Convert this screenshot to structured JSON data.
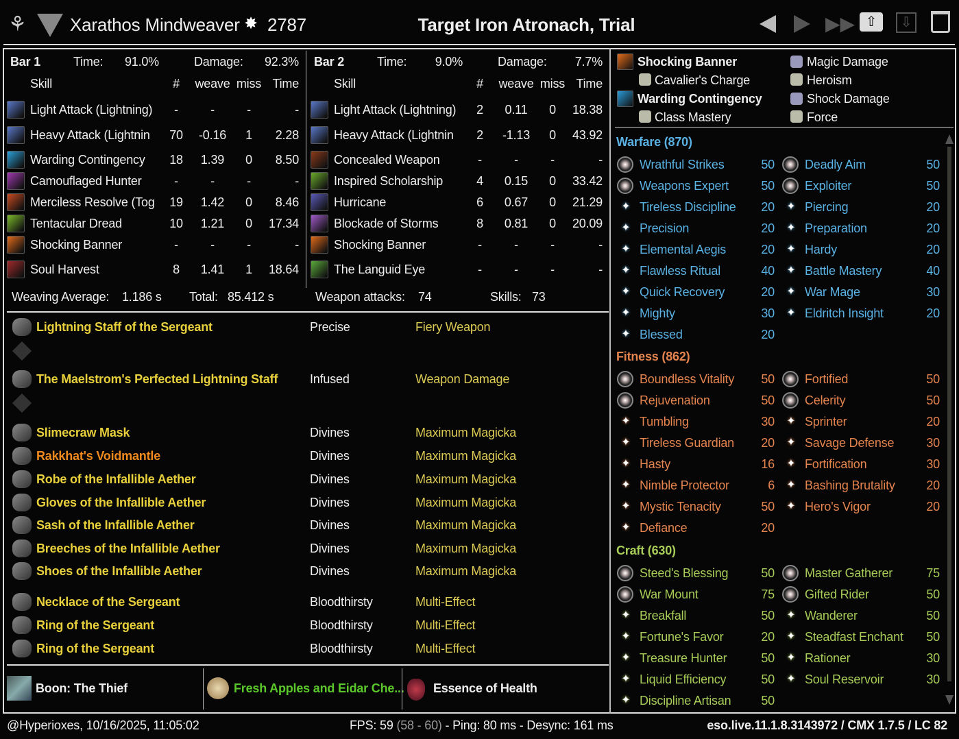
{
  "header": {
    "player_name": "Xarathos Mindweaver",
    "champion_points": "2787",
    "title": "Target Iron Atronach, Trial",
    "icons": [
      "class-emblem-icon",
      "alliance-icon",
      "champion-icon"
    ],
    "buttons": [
      "previous-icon",
      "next-icon",
      "last-icon",
      "upload-icon",
      "save-icon",
      "delete-icon"
    ]
  },
  "bars": [
    {
      "label": "Bar 1",
      "time_label": "Time:",
      "time": "91.0%",
      "damage_label": "Damage:",
      "damage": "92.3%",
      "cols": {
        "skill": "Skill",
        "count": "#",
        "weave": "weave",
        "miss": "miss",
        "time": "Time"
      },
      "rows": [
        {
          "name": "Light Attack (Lightning)",
          "count": "-",
          "weave": "-",
          "miss": "-",
          "time": "-",
          "color": "#5a78c8"
        },
        {
          "name": "Heavy Attack (Lightnin",
          "count": "70",
          "weave": "-0.16",
          "miss": "1",
          "time": "2.28",
          "color": "#5a78c8"
        },
        {
          "name": "Warding Contingency",
          "count": "18",
          "weave": "1.39",
          "miss": "0",
          "time": "8.50",
          "color": "#2aa0d8"
        },
        {
          "name": "Camouflaged Hunter",
          "count": "-",
          "weave": "-",
          "miss": "-",
          "time": "-",
          "color": "#a03ab0"
        },
        {
          "name": "Merciless Resolve (Tog",
          "count": "19",
          "weave": "1.42",
          "miss": "0",
          "time": "8.46",
          "color": "#c84a20"
        },
        {
          "name": "Tentacular Dread",
          "count": "10",
          "weave": "1.21",
          "miss": "0",
          "time": "17.34",
          "color": "#7ab82a"
        },
        {
          "name": "Shocking Banner",
          "count": "-",
          "weave": "-",
          "miss": "-",
          "time": "-",
          "color": "#e06a1a"
        },
        {
          "name": "Soul Harvest",
          "count": "8",
          "weave": "1.41",
          "miss": "1",
          "time": "18.64",
          "color": "#a02a2a"
        }
      ],
      "footer_left_label": "Weaving Average:",
      "footer_left": "1.186 s",
      "footer_right_label": "Total:",
      "footer_right": "85.412 s"
    },
    {
      "label": "Bar 2",
      "time_label": "Time:",
      "time": "9.0%",
      "damage_label": "Damage:",
      "damage": "7.7%",
      "cols": {
        "skill": "Skill",
        "count": "#",
        "weave": "weave",
        "miss": "miss",
        "time": "Time"
      },
      "rows": [
        {
          "name": "Light Attack (Lightning)",
          "count": "2",
          "weave": "0.11",
          "miss": "0",
          "time": "18.38",
          "color": "#5a78c8"
        },
        {
          "name": "Heavy Attack (Lightnin",
          "count": "2",
          "weave": "-1.13",
          "miss": "0",
          "time": "43.92",
          "color": "#5a78c8"
        },
        {
          "name": "Concealed Weapon",
          "count": "-",
          "weave": "-",
          "miss": "-",
          "time": "-",
          "color": "#8a3a1a"
        },
        {
          "name": "Inspired Scholarship",
          "count": "4",
          "weave": "0.15",
          "miss": "0",
          "time": "33.42",
          "color": "#6aa82a"
        },
        {
          "name": "Hurricane",
          "count": "6",
          "weave": "0.67",
          "miss": "0",
          "time": "21.29",
          "color": "#5a5ab8"
        },
        {
          "name": "Blockade of Storms",
          "count": "8",
          "weave": "0.81",
          "miss": "0",
          "time": "20.09",
          "color": "#a05ac8"
        },
        {
          "name": "Shocking Banner",
          "count": "-",
          "weave": "-",
          "miss": "-",
          "time": "-",
          "color": "#e06a1a"
        },
        {
          "name": "The Languid Eye",
          "count": "-",
          "weave": "-",
          "miss": "-",
          "time": "-",
          "color": "#5aa83a"
        }
      ],
      "footer_left_label": "Weapon attacks:",
      "footer_left": "74",
      "footer_right_label": "Skills:",
      "footer_right": "73"
    }
  ],
  "gear": [
    {
      "name": "Lightning Staff of the Sergeant",
      "trait": "Precise",
      "enchant": "Fiery Weapon",
      "quality_color": "#e8d03c",
      "icon": "staff-icon"
    },
    {
      "name": "The Maelstrom's Perfected Lightning Staff",
      "trait": "Infused",
      "enchant": "Weapon Damage",
      "quality_color": "#e8d03c",
      "icon": "staff-icon"
    },
    {
      "name": "Slimecraw Mask",
      "trait": "Divines",
      "enchant": "Maximum Magicka",
      "quality_color": "#e8d03c",
      "icon": "helmet-icon"
    },
    {
      "name": "Rakkhat's Voidmantle",
      "trait": "Divines",
      "enchant": "Maximum Magicka",
      "quality_color": "#f08a1e",
      "icon": "shoulders-icon"
    },
    {
      "name": "Robe of the Infallible Aether",
      "trait": "Divines",
      "enchant": "Maximum Magicka",
      "quality_color": "#e8d03c",
      "icon": "chest-icon"
    },
    {
      "name": "Gloves of the Infallible Aether",
      "trait": "Divines",
      "enchant": "Maximum Magicka",
      "quality_color": "#e8d03c",
      "icon": "gloves-icon"
    },
    {
      "name": "Sash of the Infallible Aether",
      "trait": "Divines",
      "enchant": "Maximum Magicka",
      "quality_color": "#e8d03c",
      "icon": "belt-icon"
    },
    {
      "name": "Breeches of the Infallible Aether",
      "trait": "Divines",
      "enchant": "Maximum Magicka",
      "quality_color": "#e8d03c",
      "icon": "legs-icon"
    },
    {
      "name": "Shoes of the Infallible Aether",
      "trait": "Divines",
      "enchant": "Maximum Magicka",
      "quality_color": "#e8d03c",
      "icon": "boots-icon"
    },
    {
      "name": "Necklace of the Sergeant",
      "trait": "Bloodthirsty",
      "enchant": "Multi-Effect",
      "quality_color": "#e8d03c",
      "icon": "necklace-icon"
    },
    {
      "name": "Ring of the Sergeant",
      "trait": "Bloodthirsty",
      "enchant": "Multi-Effect",
      "quality_color": "#e8d03c",
      "icon": "ring-icon"
    },
    {
      "name": "Ring of the Sergeant",
      "trait": "Bloodthirsty",
      "enchant": "Multi-Effect",
      "quality_color": "#e8d03c",
      "icon": "ring-icon"
    }
  ],
  "consumables": {
    "mundus": "Boon: The Thief",
    "food": "Fresh Apples and Eidar Che...",
    "drink": "Essence of Health",
    "food_color": "#5ac82a"
  },
  "scribed": [
    {
      "name": "Shocking Banner",
      "focus": "Cavalier's Charge",
      "signature": "Magic Damage",
      "affix": "Heroism"
    },
    {
      "name": "Warding Contingency",
      "focus": "Class Mastery",
      "signature": "Shock Damage",
      "affix": "Force"
    }
  ],
  "cp": [
    {
      "title": "Warfare (870)",
      "color": "#5ab2e4",
      "slotted": 2,
      "stars": [
        [
          "Wrathful Strikes",
          "50"
        ],
        [
          "Deadly Aim",
          "50"
        ],
        [
          "Weapons Expert",
          "50"
        ],
        [
          "Exploiter",
          "50"
        ],
        [
          "Tireless Discipline",
          "20"
        ],
        [
          "Piercing",
          "20"
        ],
        [
          "Precision",
          "20"
        ],
        [
          "Preparation",
          "20"
        ],
        [
          "Elemental Aegis",
          "20"
        ],
        [
          "Hardy",
          "20"
        ],
        [
          "Flawless Ritual",
          "40"
        ],
        [
          "Battle Mastery",
          "40"
        ],
        [
          "Quick Recovery",
          "20"
        ],
        [
          "War Mage",
          "30"
        ],
        [
          "Mighty",
          "30"
        ],
        [
          "Eldritch Insight",
          "20"
        ],
        [
          "Blessed",
          "20"
        ]
      ]
    },
    {
      "title": "Fitness (862)",
      "color": "#e4844e",
      "slotted": 2,
      "stars": [
        [
          "Boundless Vitality",
          "50"
        ],
        [
          "Fortified",
          "50"
        ],
        [
          "Rejuvenation",
          "50"
        ],
        [
          "Celerity",
          "50"
        ],
        [
          "Tumbling",
          "30"
        ],
        [
          "Sprinter",
          "20"
        ],
        [
          "Tireless Guardian",
          "20"
        ],
        [
          "Savage Defense",
          "30"
        ],
        [
          "Hasty",
          "16"
        ],
        [
          "Fortification",
          "30"
        ],
        [
          "Nimble Protector",
          "6"
        ],
        [
          "Bashing Brutality",
          "20"
        ],
        [
          "Mystic Tenacity",
          "50"
        ],
        [
          "Hero's Vigor",
          "20"
        ],
        [
          "Defiance",
          "20"
        ]
      ]
    },
    {
      "title": "Craft (630)",
      "color": "#a8cc58",
      "slotted": 2,
      "stars": [
        [
          "Steed's Blessing",
          "50"
        ],
        [
          "Master Gatherer",
          "75"
        ],
        [
          "War Mount",
          "75"
        ],
        [
          "Gifted Rider",
          "50"
        ],
        [
          "Breakfall",
          "50"
        ],
        [
          "Wanderer",
          "50"
        ],
        [
          "Fortune's Favor",
          "20"
        ],
        [
          "Steadfast Enchant",
          "50"
        ],
        [
          "Treasure Hunter",
          "50"
        ],
        [
          "Rationer",
          "30"
        ],
        [
          "Liquid Efficiency",
          "50"
        ],
        [
          "Soul Reservoir",
          "30"
        ],
        [
          "Discipline Artisan",
          "50"
        ]
      ]
    }
  ],
  "status": {
    "user_time": "@Hyperioxes, 10/16/2025, 11:05:02",
    "fps_label": "FPS: 59",
    "fps_range": "(58 - 60)",
    "ping": "- Ping: 80 ms - Desync: 161 ms",
    "version": "eso.live.11.1.8.3143972 / CMX 1.7.5 / LC 82"
  }
}
